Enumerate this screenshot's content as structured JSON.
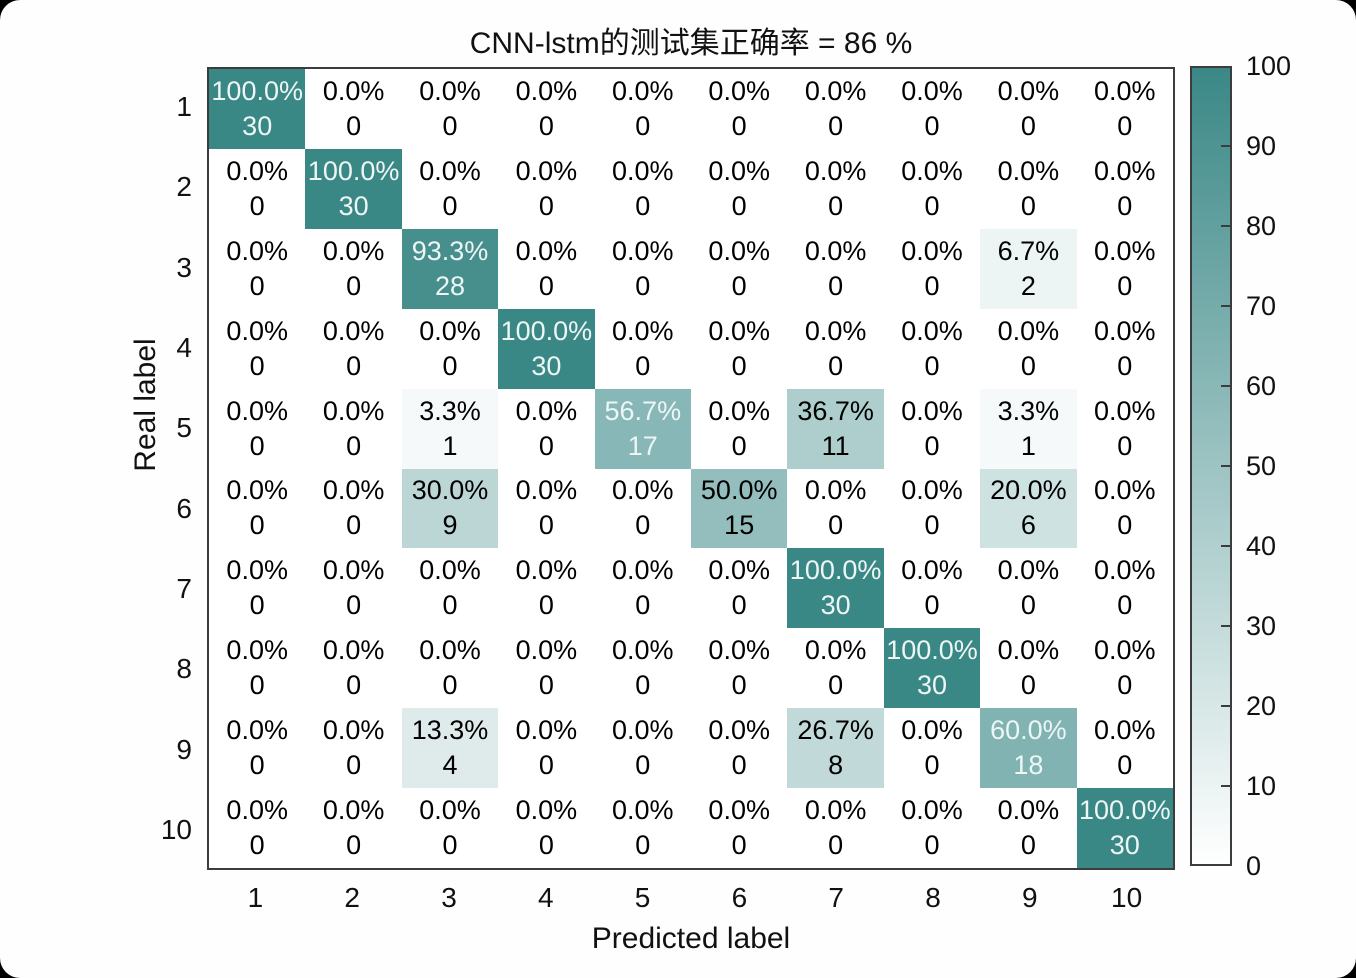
{
  "chart_data": {
    "type": "heatmap",
    "subtype": "confusion-matrix",
    "title": "CNN-lstm的测试集正确率 = 86 %",
    "xlabel": "Predicted label",
    "ylabel": "Real label",
    "x_categories": [
      "1",
      "2",
      "3",
      "4",
      "5",
      "6",
      "7",
      "8",
      "9",
      "10"
    ],
    "y_categories": [
      "1",
      "2",
      "3",
      "4",
      "5",
      "6",
      "7",
      "8",
      "9",
      "10"
    ],
    "percent_labels": [
      [
        "100.0%",
        "0.0%",
        "0.0%",
        "0.0%",
        "0.0%",
        "0.0%",
        "0.0%",
        "0.0%",
        "0.0%",
        "0.0%"
      ],
      [
        "0.0%",
        "100.0%",
        "0.0%",
        "0.0%",
        "0.0%",
        "0.0%",
        "0.0%",
        "0.0%",
        "0.0%",
        "0.0%"
      ],
      [
        "0.0%",
        "0.0%",
        "93.3%",
        "0.0%",
        "0.0%",
        "0.0%",
        "0.0%",
        "0.0%",
        "6.7%",
        "0.0%"
      ],
      [
        "0.0%",
        "0.0%",
        "0.0%",
        "100.0%",
        "0.0%",
        "0.0%",
        "0.0%",
        "0.0%",
        "0.0%",
        "0.0%"
      ],
      [
        "0.0%",
        "0.0%",
        "3.3%",
        "0.0%",
        "56.7%",
        "0.0%",
        "36.7%",
        "0.0%",
        "3.3%",
        "0.0%"
      ],
      [
        "0.0%",
        "0.0%",
        "30.0%",
        "0.0%",
        "0.0%",
        "50.0%",
        "0.0%",
        "0.0%",
        "20.0%",
        "0.0%"
      ],
      [
        "0.0%",
        "0.0%",
        "0.0%",
        "0.0%",
        "0.0%",
        "0.0%",
        "100.0%",
        "0.0%",
        "0.0%",
        "0.0%"
      ],
      [
        "0.0%",
        "0.0%",
        "0.0%",
        "0.0%",
        "0.0%",
        "0.0%",
        "0.0%",
        "100.0%",
        "0.0%",
        "0.0%"
      ],
      [
        "0.0%",
        "0.0%",
        "13.3%",
        "0.0%",
        "0.0%",
        "0.0%",
        "26.7%",
        "0.0%",
        "60.0%",
        "0.0%"
      ],
      [
        "0.0%",
        "0.0%",
        "0.0%",
        "0.0%",
        "0.0%",
        "0.0%",
        "0.0%",
        "0.0%",
        "0.0%",
        "100.0%"
      ]
    ],
    "counts": [
      [
        30,
        0,
        0,
        0,
        0,
        0,
        0,
        0,
        0,
        0
      ],
      [
        0,
        30,
        0,
        0,
        0,
        0,
        0,
        0,
        0,
        0
      ],
      [
        0,
        0,
        28,
        0,
        0,
        0,
        0,
        0,
        2,
        0
      ],
      [
        0,
        0,
        0,
        30,
        0,
        0,
        0,
        0,
        0,
        0
      ],
      [
        0,
        0,
        1,
        0,
        17,
        0,
        11,
        0,
        1,
        0
      ],
      [
        0,
        0,
        9,
        0,
        0,
        15,
        0,
        0,
        6,
        0
      ],
      [
        0,
        0,
        0,
        0,
        0,
        0,
        30,
        0,
        0,
        0
      ],
      [
        0,
        0,
        0,
        0,
        0,
        0,
        0,
        30,
        0,
        0
      ],
      [
        0,
        0,
        4,
        0,
        0,
        0,
        8,
        0,
        18,
        0
      ],
      [
        0,
        0,
        0,
        0,
        0,
        0,
        0,
        0,
        0,
        30
      ]
    ],
    "colorbar": {
      "min": 0,
      "max": 100,
      "ticks": [
        "0",
        "10",
        "20",
        "30",
        "40",
        "50",
        "60",
        "70",
        "80",
        "90",
        "100"
      ]
    },
    "colors": {
      "high": "#3a8886",
      "low": "#ffffff",
      "text_dark": "#000000",
      "text_light": "#eef6f5",
      "axis_border": "#3c3c3c"
    }
  }
}
